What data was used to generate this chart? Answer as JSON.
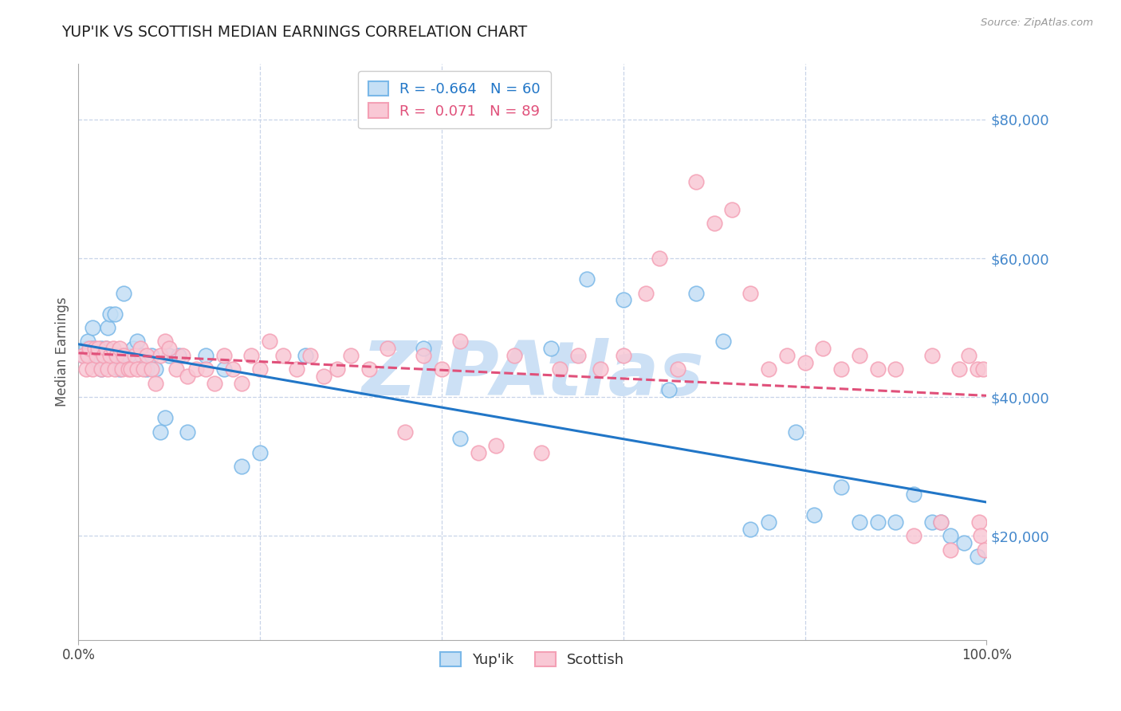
{
  "title": "YUP'IK VS SCOTTISH MEDIAN EARNINGS CORRELATION CHART",
  "source": "Source: ZipAtlas.com",
  "ylabel": "Median Earnings",
  "xmin": 0.0,
  "xmax": 1.0,
  "ymin": 5000,
  "ymax": 88000,
  "yticks": [
    20000,
    40000,
    60000,
    80000
  ],
  "ytick_labels": [
    "$20,000",
    "$40,000",
    "$60,000",
    "$80,000"
  ],
  "series": [
    {
      "name": "Yup'ik",
      "R": -0.664,
      "N": 60,
      "color": "#7ab8e8",
      "color_fill": "#c5dff5",
      "trend_color": "#2176c7",
      "trend_linestyle": "-",
      "x": [
        0.005,
        0.008,
        0.01,
        0.012,
        0.015,
        0.015,
        0.018,
        0.02,
        0.022,
        0.025,
        0.025,
        0.028,
        0.03,
        0.032,
        0.035,
        0.038,
        0.04,
        0.042,
        0.045,
        0.048,
        0.05,
        0.055,
        0.06,
        0.065,
        0.07,
        0.075,
        0.08,
        0.085,
        0.09,
        0.095,
        0.1,
        0.11,
        0.12,
        0.14,
        0.16,
        0.18,
        0.2,
        0.25,
        0.38,
        0.42,
        0.52,
        0.56,
        0.6,
        0.65,
        0.68,
        0.71,
        0.74,
        0.76,
        0.79,
        0.81,
        0.84,
        0.86,
        0.88,
        0.9,
        0.92,
        0.94,
        0.95,
        0.96,
        0.975,
        0.99
      ],
      "y": [
        46000,
        47000,
        48000,
        46000,
        50000,
        47000,
        46000,
        45000,
        46000,
        47000,
        44000,
        46000,
        47000,
        50000,
        52000,
        46000,
        52000,
        46000,
        44000,
        46000,
        55000,
        46000,
        47000,
        48000,
        46000,
        44000,
        46000,
        44000,
        35000,
        37000,
        46000,
        46000,
        35000,
        46000,
        44000,
        30000,
        32000,
        46000,
        47000,
        34000,
        47000,
        57000,
        54000,
        41000,
        55000,
        48000,
        21000,
        22000,
        35000,
        23000,
        27000,
        22000,
        22000,
        22000,
        26000,
        22000,
        22000,
        20000,
        19000,
        17000
      ]
    },
    {
      "name": "Scottish",
      "R": 0.071,
      "N": 89,
      "color": "#f4a0b5",
      "color_fill": "#f9c8d5",
      "trend_color": "#e0507a",
      "trend_linestyle": "--",
      "x": [
        0.005,
        0.008,
        0.01,
        0.012,
        0.015,
        0.018,
        0.02,
        0.022,
        0.025,
        0.028,
        0.03,
        0.032,
        0.035,
        0.038,
        0.04,
        0.042,
        0.045,
        0.048,
        0.05,
        0.055,
        0.058,
        0.062,
        0.065,
        0.068,
        0.072,
        0.075,
        0.08,
        0.085,
        0.09,
        0.095,
        0.1,
        0.108,
        0.115,
        0.12,
        0.13,
        0.14,
        0.15,
        0.16,
        0.17,
        0.18,
        0.19,
        0.2,
        0.21,
        0.225,
        0.24,
        0.255,
        0.27,
        0.285,
        0.3,
        0.32,
        0.34,
        0.36,
        0.38,
        0.4,
        0.42,
        0.44,
        0.46,
        0.48,
        0.51,
        0.53,
        0.55,
        0.575,
        0.6,
        0.625,
        0.64,
        0.66,
        0.68,
        0.7,
        0.72,
        0.74,
        0.76,
        0.78,
        0.8,
        0.82,
        0.84,
        0.86,
        0.88,
        0.9,
        0.92,
        0.94,
        0.95,
        0.96,
        0.97,
        0.98,
        0.99,
        0.992,
        0.994,
        0.996,
        0.998
      ],
      "y": [
        46000,
        44000,
        46000,
        47000,
        44000,
        47000,
        46000,
        47000,
        44000,
        46000,
        47000,
        44000,
        46000,
        47000,
        44000,
        46000,
        47000,
        44000,
        46000,
        44000,
        44000,
        46000,
        44000,
        47000,
        44000,
        46000,
        44000,
        42000,
        46000,
        48000,
        47000,
        44000,
        46000,
        43000,
        44000,
        44000,
        42000,
        46000,
        44000,
        42000,
        46000,
        44000,
        48000,
        46000,
        44000,
        46000,
        43000,
        44000,
        46000,
        44000,
        47000,
        35000,
        46000,
        44000,
        48000,
        32000,
        33000,
        46000,
        32000,
        44000,
        46000,
        44000,
        46000,
        55000,
        60000,
        44000,
        71000,
        65000,
        67000,
        55000,
        44000,
        46000,
        45000,
        47000,
        44000,
        46000,
        44000,
        44000,
        20000,
        46000,
        22000,
        18000,
        44000,
        46000,
        44000,
        22000,
        20000,
        44000,
        18000
      ]
    }
  ],
  "watermark": "ZIPAtlas",
  "watermark_color": "#cce0f5",
  "background_color": "#ffffff",
  "grid_color": "#c8d4e8",
  "title_color": "#222222",
  "axis_label_color": "#555555",
  "ytick_color": "#4488cc",
  "xtick_color": "#444444",
  "spine_color": "#aaaaaa"
}
